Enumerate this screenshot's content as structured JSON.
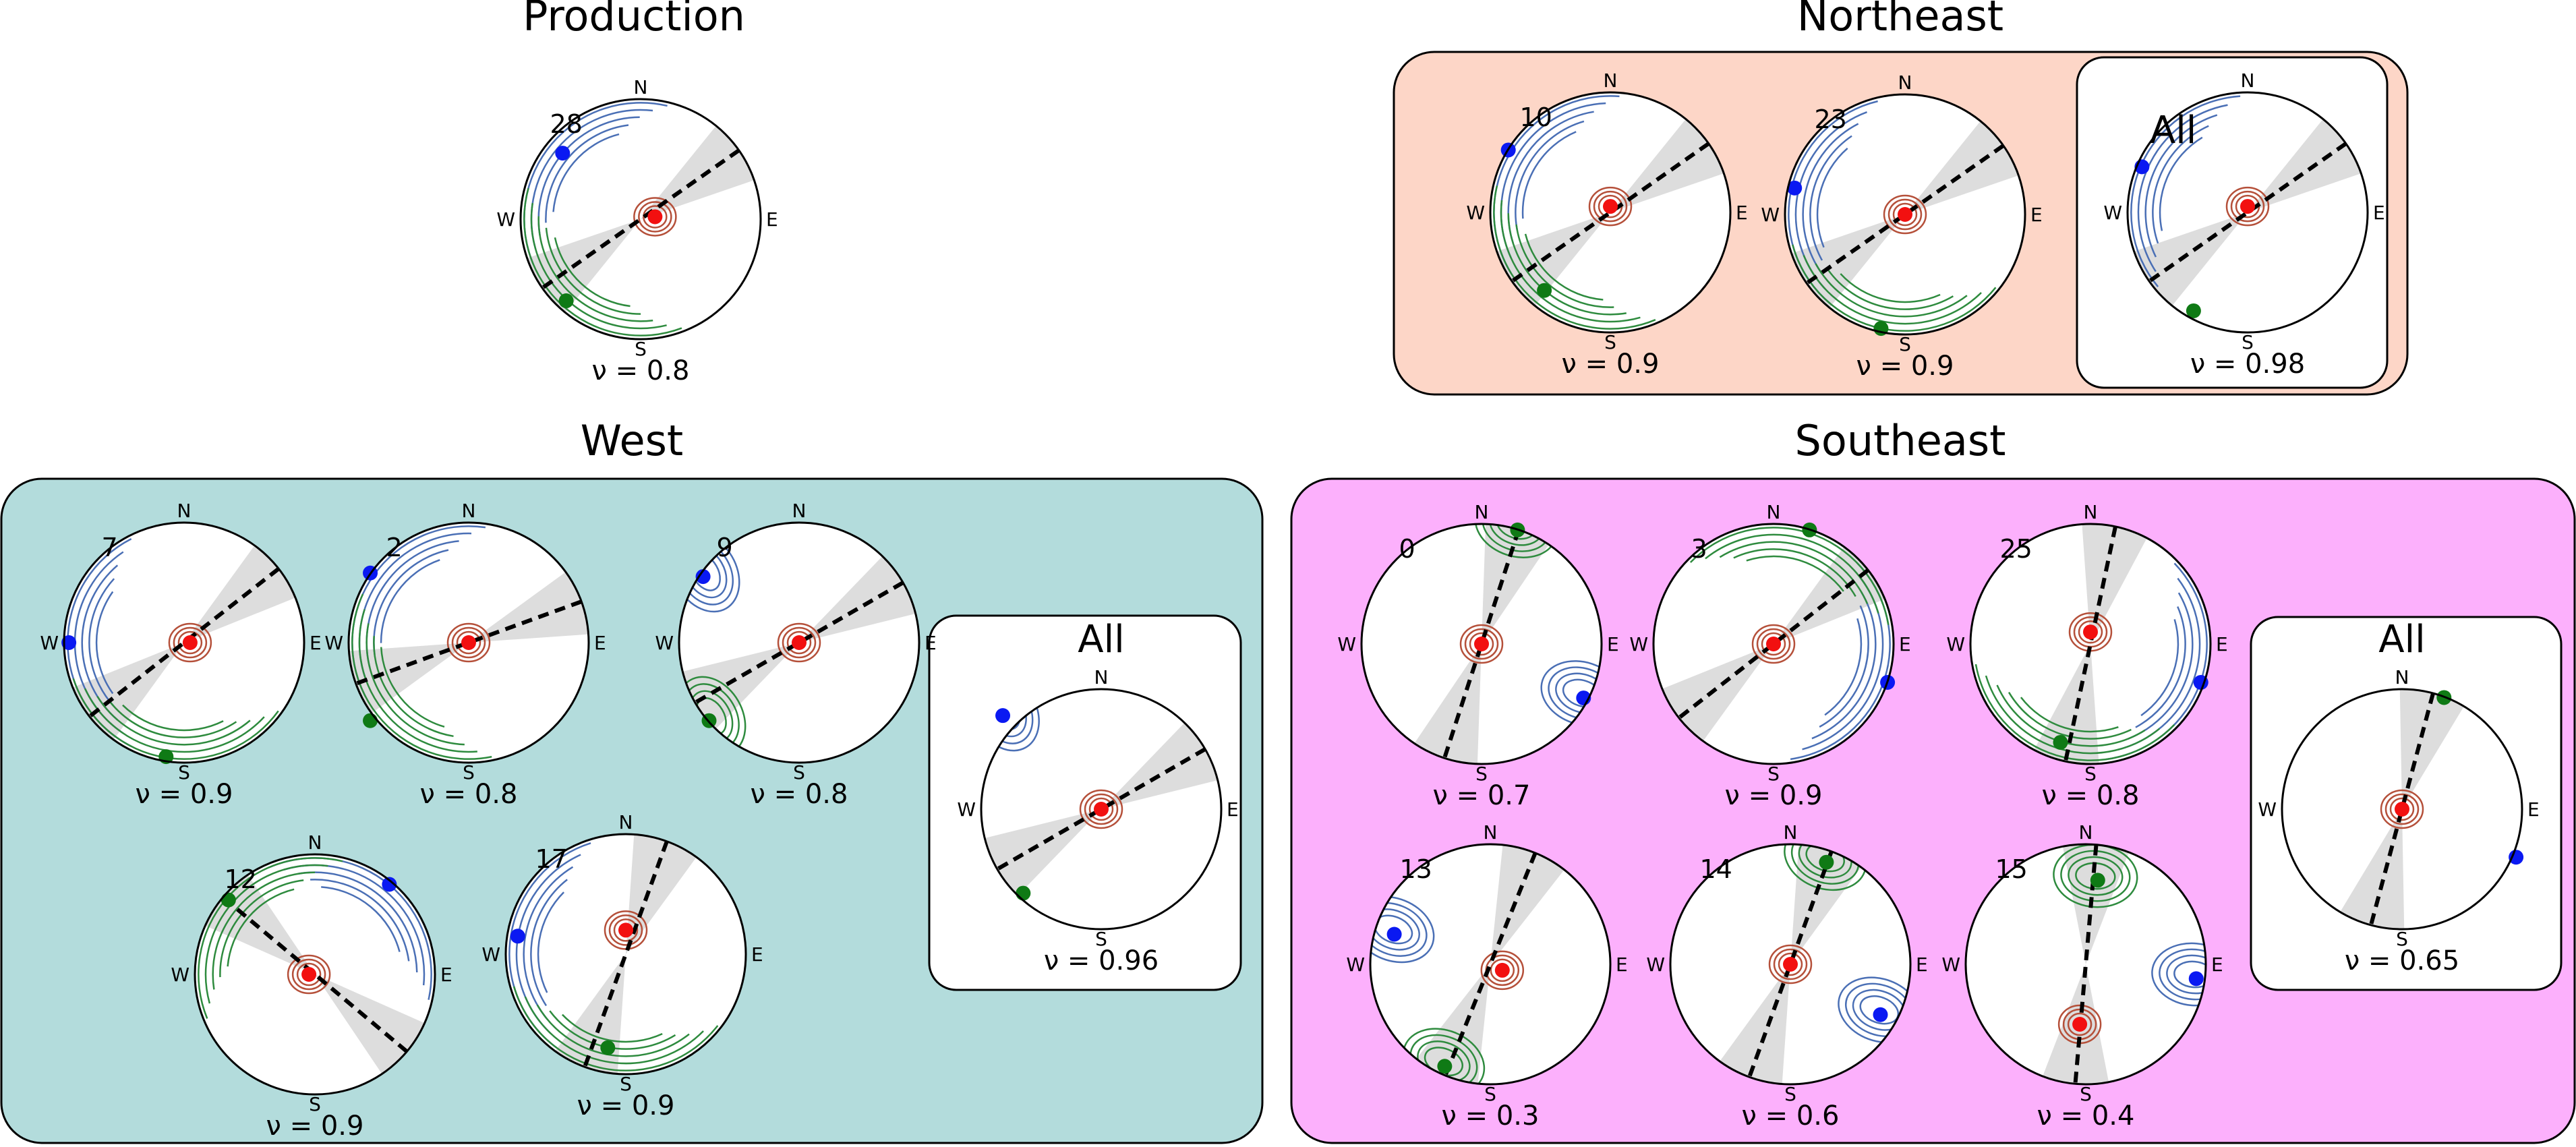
{
  "colors": {
    "northeast_bg": "#fdd6c7",
    "west_bg": "#b3dcdc",
    "southeast_bg": "#fcb0fc",
    "inner_box_bg": "#ffffff",
    "sector_gray": "#dddddd",
    "contour_blue": "#4a6fb5",
    "contour_green": "#2e8b3e",
    "contour_red": "#b5503a",
    "dot_blue": "#0a19f2",
    "dot_green": "#0f7a15",
    "dot_red": "#f21010"
  },
  "compass": {
    "n": "N",
    "s": "S",
    "e": "E",
    "w": "W"
  },
  "nu_prefix": "ν = ",
  "groups": {
    "production": {
      "title": "Production"
    },
    "northeast": {
      "title": "Northeast"
    },
    "west": {
      "title": "West"
    },
    "southeast": {
      "title": "Southeast"
    }
  },
  "stereonets": [
    {
      "id": "production-28",
      "group": "production",
      "label": "28",
      "nu": "0.8",
      "line_angle": 35,
      "blue": [
        -0.65,
        0.55
      ],
      "green": [
        -0.62,
        -0.68
      ],
      "red": [
        0.12,
        0.02
      ],
      "contours": [
        "blue-arc",
        "green-arc"
      ]
    },
    {
      "id": "northeast-10",
      "group": "northeast",
      "label": "10",
      "nu": "0.9",
      "line_angle": 35,
      "blue": [
        -0.85,
        0.52
      ],
      "green": [
        -0.55,
        -0.65
      ],
      "red": [
        0.0,
        0.05
      ],
      "contours": [
        "blue-arc",
        "green-arc"
      ]
    },
    {
      "id": "northeast-23",
      "group": "northeast",
      "label": "23",
      "nu": "0.9",
      "line_angle": 35,
      "blue": [
        -0.92,
        0.22
      ],
      "green": [
        -0.2,
        -0.95
      ],
      "red": [
        0.0,
        0.0
      ],
      "contours": [
        "blue-arc",
        "green-arc"
      ]
    },
    {
      "id": "northeast-all",
      "group": "northeast",
      "label": "All",
      "nu": "0.98",
      "line_angle": 35,
      "blue": [
        -0.88,
        0.38
      ],
      "green": [
        -0.45,
        -0.82
      ],
      "red": [
        0.0,
        0.05
      ],
      "contours": [
        "blue-arc"
      ]
    },
    {
      "id": "west-7",
      "group": "west",
      "label": "7",
      "nu": "0.9",
      "line_angle": 38,
      "blue": [
        -0.96,
        0.0
      ],
      "green": [
        -0.15,
        -0.95
      ],
      "red": [
        0.05,
        0.0
      ],
      "contours": [
        "blue-arc",
        "green-arc"
      ]
    },
    {
      "id": "west-2",
      "group": "west",
      "label": "2",
      "nu": "0.8",
      "line_angle": 20,
      "blue": [
        -0.82,
        0.58
      ],
      "green": [
        -0.82,
        -0.65
      ],
      "red": [
        0.0,
        0.0
      ],
      "contours": [
        "blue-arc",
        "green-arc"
      ]
    },
    {
      "id": "west-9",
      "group": "west",
      "label": "9",
      "nu": "0.8",
      "line_angle": 30,
      "blue": [
        -0.8,
        0.55
      ],
      "green": [
        -0.75,
        -0.65
      ],
      "red": [
        0.0,
        0.0
      ],
      "contours": [
        "blue-spot",
        "green-spot"
      ]
    },
    {
      "id": "west-12",
      "group": "west",
      "label": "12",
      "nu": "0.9",
      "line_angle": -40,
      "blue": [
        0.62,
        0.75
      ],
      "green": [
        -0.72,
        0.62
      ],
      "red": [
        -0.05,
        0.0
      ],
      "contours": [
        "blue-arc",
        "green-arc"
      ]
    },
    {
      "id": "west-17",
      "group": "west",
      "label": "17",
      "nu": "0.9",
      "line_angle": 70,
      "blue": [
        -0.9,
        0.15
      ],
      "green": [
        -0.15,
        -0.78
      ],
      "red": [
        0.0,
        0.2
      ],
      "contours": [
        "blue-arc",
        "green-arc"
      ]
    },
    {
      "id": "west-all",
      "group": "west",
      "label": "All",
      "nu": "0.96",
      "line_angle": 30,
      "blue": [
        -0.82,
        0.78
      ],
      "green": [
        -0.65,
        -0.7
      ],
      "red": [
        0.0,
        0.0
      ],
      "contours": [
        "blue-spot"
      ]
    },
    {
      "id": "southeast-0",
      "group": "southeast",
      "label": "0",
      "nu": "0.7",
      "line_angle": 72,
      "blue": [
        0.85,
        -0.45
      ],
      "green": [
        0.3,
        0.95
      ],
      "red": [
        0.0,
        0.0
      ],
      "contours": [
        "blue-spot",
        "green-spot"
      ]
    },
    {
      "id": "southeast-3",
      "group": "southeast",
      "label": "3",
      "nu": "0.9",
      "line_angle": 38,
      "blue": [
        0.95,
        -0.32
      ],
      "green": [
        0.3,
        0.95
      ],
      "red": [
        0.0,
        0.0
      ],
      "contours": [
        "blue-arc",
        "green-arc"
      ]
    },
    {
      "id": "southeast-25",
      "group": "southeast",
      "label": "25",
      "nu": "0.8",
      "line_angle": 78,
      "blue": [
        0.92,
        -0.32
      ],
      "green": [
        -0.25,
        -0.82
      ],
      "red": [
        0.0,
        0.1
      ],
      "contours": [
        "blue-arc",
        "green-arc"
      ]
    },
    {
      "id": "southeast-13",
      "group": "southeast",
      "label": "13",
      "nu": "0.3",
      "line_angle": 68,
      "blue": [
        -0.8,
        0.25
      ],
      "green": [
        -0.38,
        -0.85
      ],
      "red": [
        0.1,
        -0.05
      ],
      "contours": [
        "blue-spot",
        "green-spot"
      ]
    },
    {
      "id": "southeast-14",
      "group": "southeast",
      "label": "14",
      "nu": "0.6",
      "line_angle": 70,
      "blue": [
        0.75,
        -0.42
      ],
      "green": [
        0.3,
        0.85
      ],
      "red": [
        0.0,
        0.0
      ],
      "contours": [
        "blue-spot",
        "green-spot"
      ]
    },
    {
      "id": "southeast-15",
      "group": "southeast",
      "label": "15",
      "nu": "0.4",
      "line_angle": 85,
      "blue": [
        0.92,
        -0.12
      ],
      "green": [
        0.1,
        0.7
      ],
      "red": [
        -0.05,
        -0.5
      ],
      "contours": [
        "blue-spot",
        "green-spot"
      ]
    },
    {
      "id": "southeast-all",
      "group": "southeast",
      "label": "All",
      "nu": "0.65",
      "line_angle": 75,
      "blue": [
        0.95,
        -0.4
      ],
      "green": [
        0.35,
        0.93
      ],
      "red": [
        0.0,
        0.0
      ],
      "contours": []
    }
  ]
}
